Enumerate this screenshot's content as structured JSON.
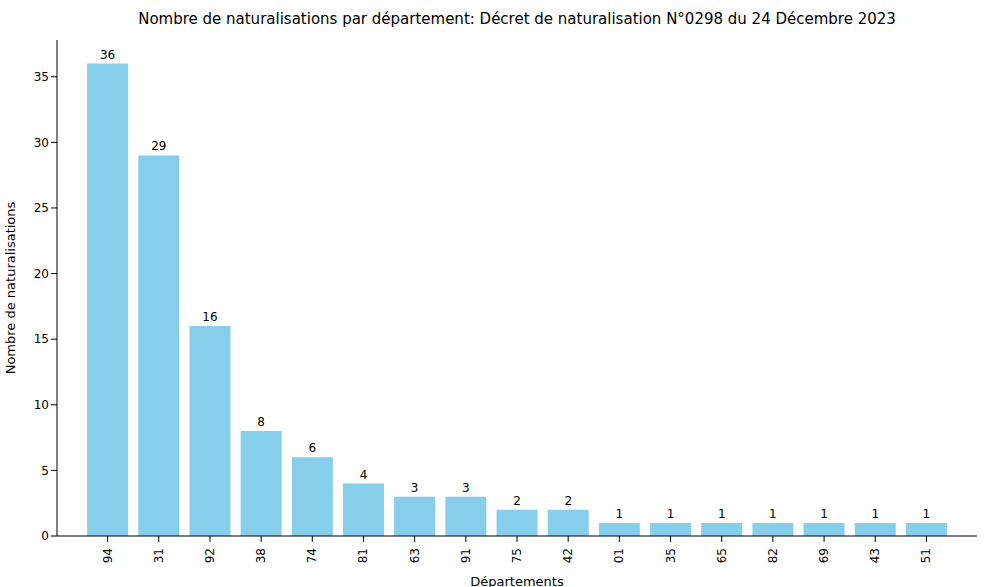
{
  "chart_data": {
    "type": "bar",
    "title": "Nombre de naturalisations par département: Décret de naturalisation N°0298 du 24 Décembre 2023",
    "x_label": "Départements",
    "y_label": "Nombre de naturalisations",
    "categories": [
      "94",
      "31",
      "92",
      "38",
      "74",
      "81",
      "63",
      "91",
      "75",
      "42",
      "01",
      "35",
      "65",
      "82",
      "69",
      "43",
      "51"
    ],
    "values": [
      36,
      29,
      16,
      8,
      6,
      4,
      3,
      3,
      2,
      2,
      1,
      1,
      1,
      1,
      1,
      1,
      1
    ],
    "color": "#87ceeb",
    "ylim": [
      0,
      37.8
    ],
    "yticks": [
      0,
      5,
      10,
      15,
      20,
      25,
      30,
      35
    ],
    "grid": false,
    "data_labels": true
  }
}
